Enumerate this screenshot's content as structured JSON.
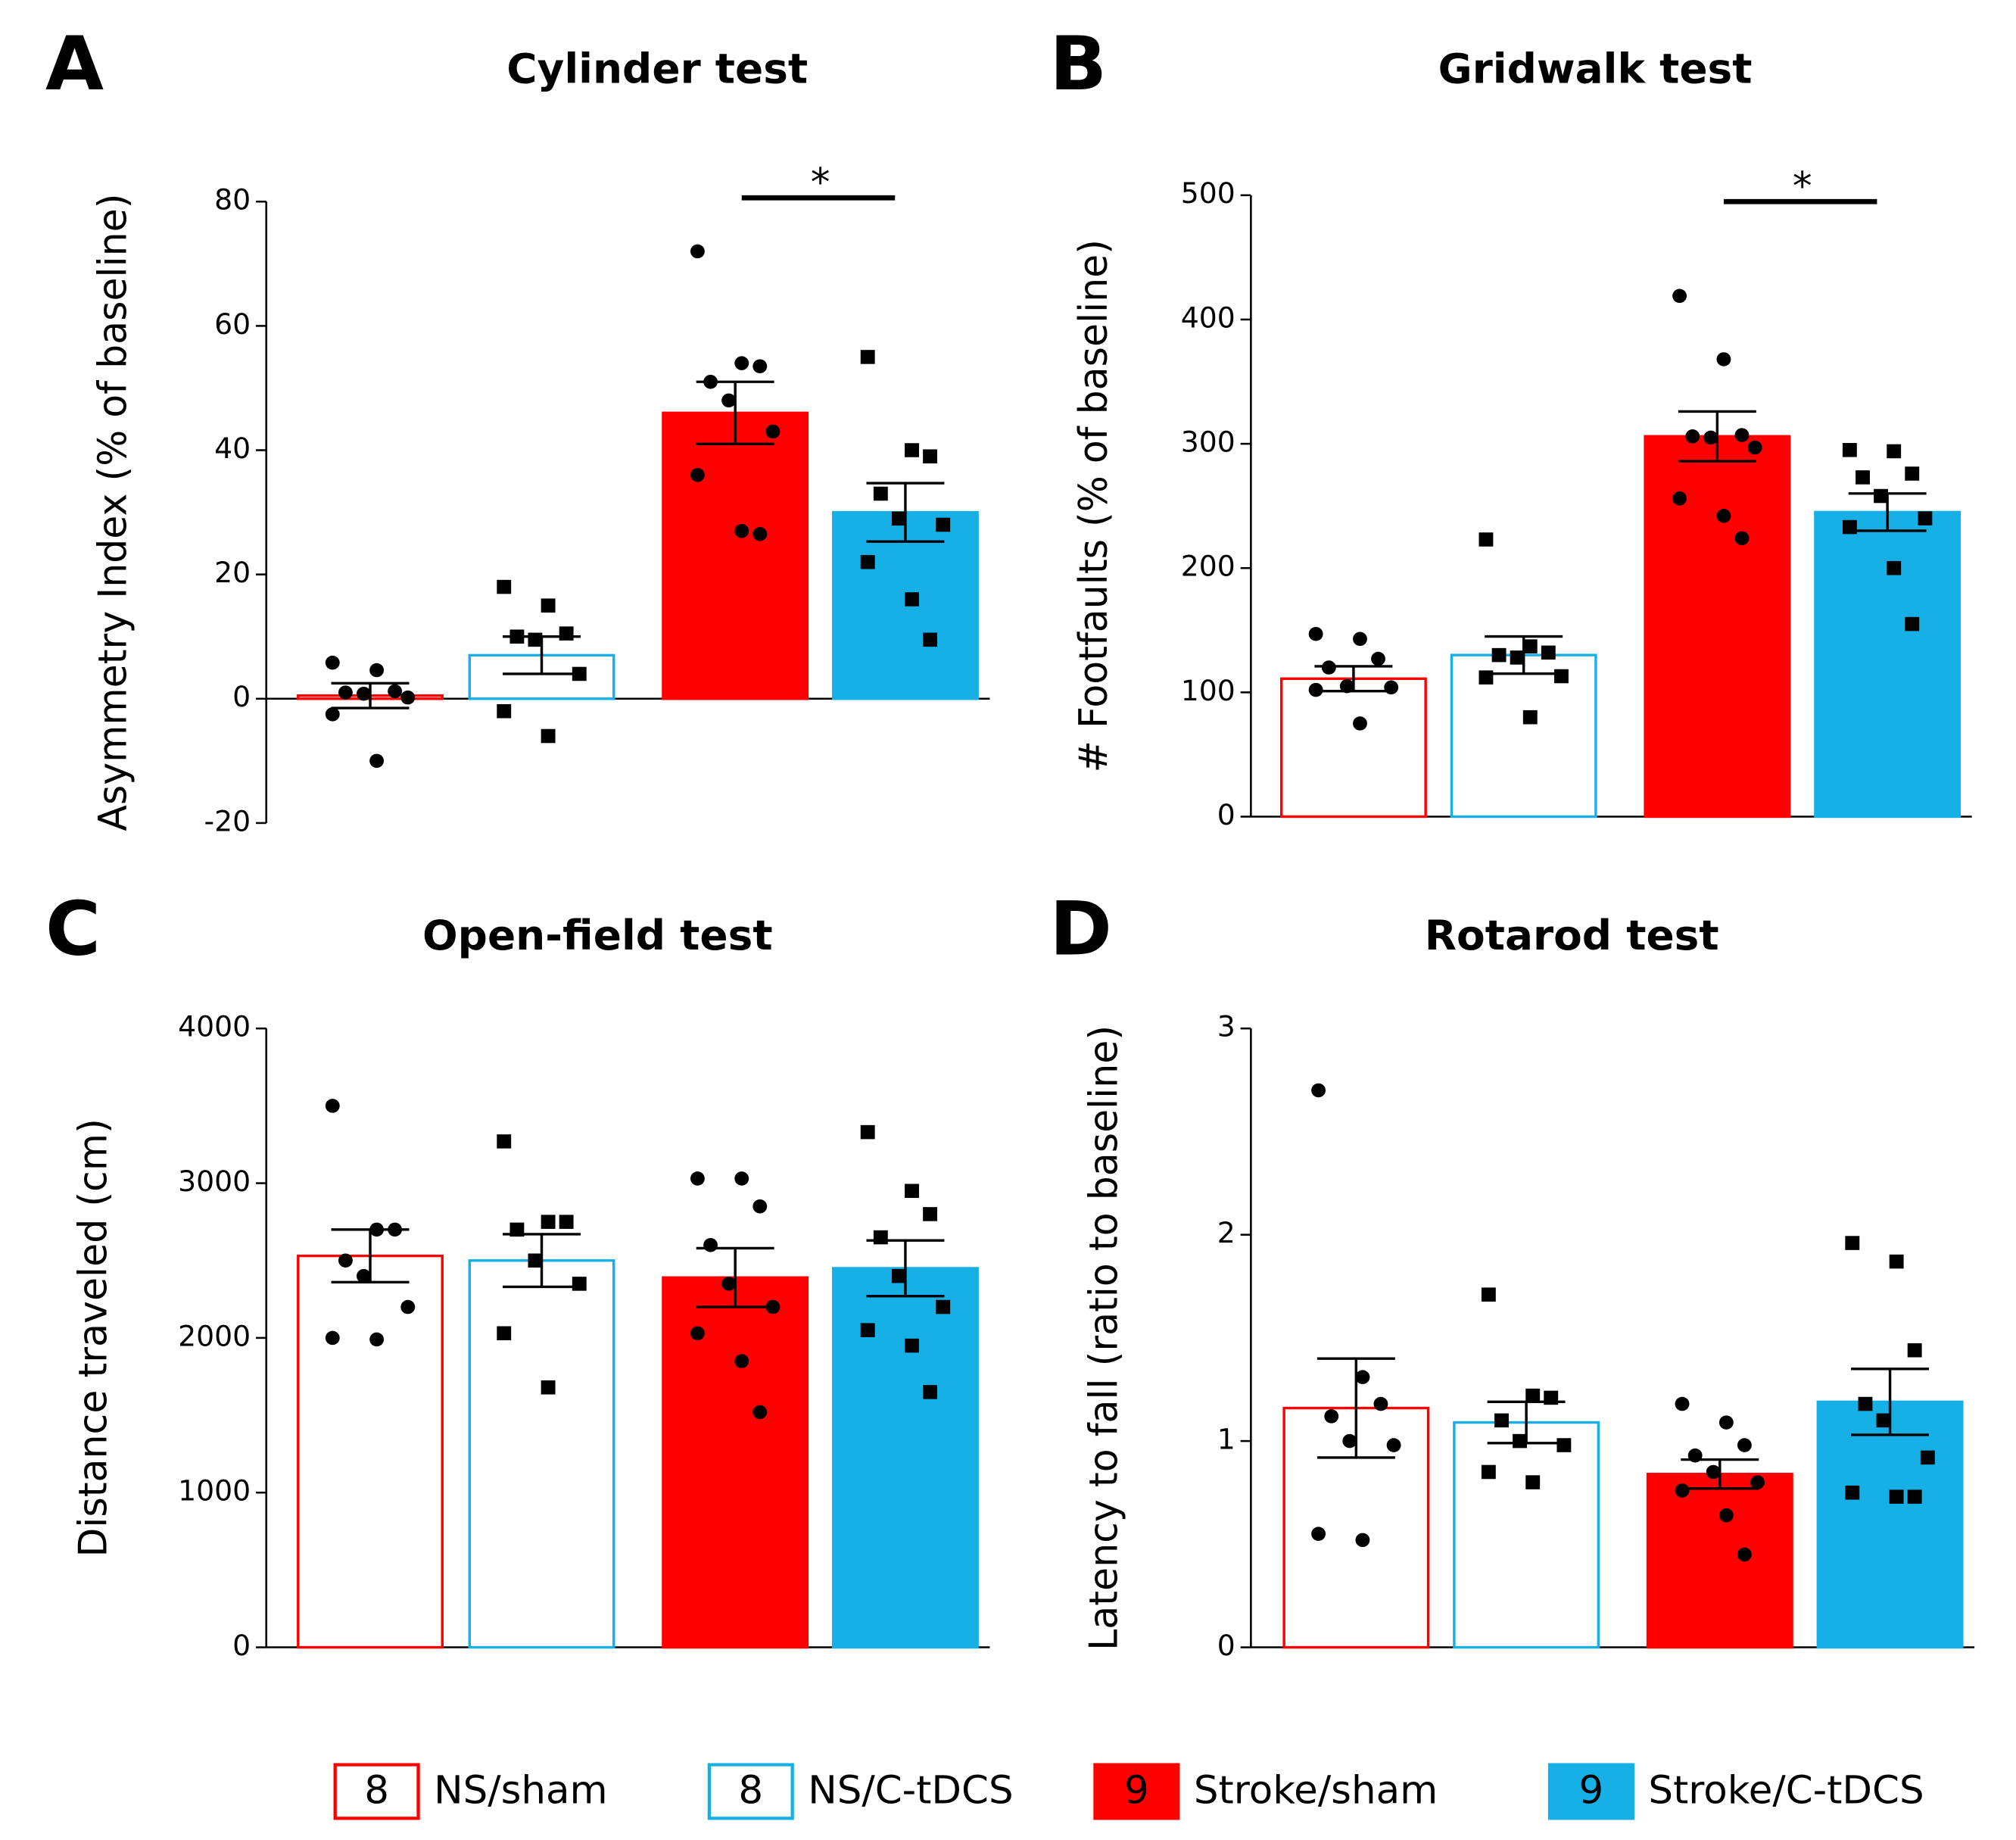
{
  "chart_data": [
    {
      "type": "bar",
      "panel": "A",
      "title": "Cylinder test",
      "y_label": "Asymmetry Index (% of baseline)",
      "ylim": [
        -20,
        80
      ],
      "yticks": [
        -20,
        0,
        20,
        40,
        60,
        80
      ],
      "values": [
        0.5,
        7,
        46,
        30
      ],
      "errors": [
        2,
        3,
        5,
        4.7
      ],
      "points": [
        [
          5.8,
          4.6,
          1.2,
          1.0,
          0.8,
          0.2,
          -2.5,
          -10
        ],
        [
          18,
          15,
          10.5,
          10,
          9.5,
          4,
          -2,
          -6
        ],
        [
          72,
          54,
          53.5,
          51,
          48,
          43,
          36,
          27,
          26.5
        ],
        [
          55,
          40,
          39,
          33,
          29,
          28,
          22,
          16,
          9.5
        ]
      ],
      "significance": {
        "label": "*",
        "between": [
          2,
          3
        ]
      }
    },
    {
      "type": "bar",
      "panel": "B",
      "title": "Gridwalk test",
      "y_label": "# Footfaults (% of baseline)",
      "ylim": [
        0,
        500
      ],
      "yticks": [
        0,
        100,
        200,
        300,
        400,
        500
      ],
      "values": [
        111,
        130,
        306,
        245
      ],
      "errors": [
        10,
        15,
        20,
        15
      ],
      "points": [
        [
          147,
          143,
          127,
          120,
          105,
          104,
          102,
          75
        ],
        [
          223,
          137,
          132,
          130,
          128,
          113,
          112,
          80
        ],
        [
          419,
          368,
          307,
          306,
          305,
          297,
          256,
          242,
          224
        ],
        [
          295,
          294,
          276,
          273,
          258,
          240,
          233,
          200,
          155
        ]
      ],
      "significance": {
        "label": "*",
        "between": [
          2,
          3
        ]
      }
    },
    {
      "type": "bar",
      "panel": "C",
      "title": "Open-field test",
      "y_label": "Distance traveled (cm)",
      "ylim": [
        0,
        4000
      ],
      "yticks": [
        0,
        1000,
        2000,
        3000,
        4000
      ],
      "values": [
        2530,
        2500,
        2390,
        2450
      ],
      "errors": [
        170,
        170,
        190,
        180
      ],
      "points": [
        [
          3500,
          2700,
          2700,
          2500,
          2400,
          2200,
          2000,
          1990
        ],
        [
          3270,
          2750,
          2750,
          2700,
          2500,
          2350,
          2030,
          1680
        ],
        [
          3030,
          3030,
          2850,
          2600,
          2350,
          2200,
          2030,
          1850,
          1520
        ],
        [
          3330,
          2950,
          2800,
          2650,
          2400,
          2200,
          2050,
          1950,
          1650
        ]
      ]
    },
    {
      "type": "bar",
      "panel": "D",
      "title": "Rotarod test",
      "y_label": "Latency to fall (ratio to baseline)",
      "ylim": [
        0,
        3
      ],
      "yticks": [
        0,
        1,
        2,
        3
      ],
      "values": [
        1.16,
        1.09,
        0.84,
        1.19
      ],
      "errors": [
        0.24,
        0.1,
        0.07,
        0.16
      ],
      "points": [
        [
          2.7,
          1.31,
          1.18,
          1.12,
          1.0,
          0.98,
          0.55,
          0.52
        ],
        [
          1.71,
          1.22,
          1.21,
          1.1,
          1.0,
          0.98,
          0.85,
          0.8
        ],
        [
          1.18,
          1.09,
          0.98,
          0.93,
          0.85,
          0.8,
          0.76,
          0.64,
          0.45
        ],
        [
          1.96,
          1.87,
          1.44,
          1.18,
          1.1,
          0.92,
          0.75,
          0.73,
          0.73
        ]
      ]
    }
  ],
  "groups": [
    {
      "n": 8,
      "name": "NS/sham",
      "color": "#ff0000",
      "filled": false,
      "marker": "circle"
    },
    {
      "n": 8,
      "name": "NS/C-tDCS",
      "color": "#16b0e6",
      "filled": false,
      "marker": "square"
    },
    {
      "n": 9,
      "name": "Stroke/sham",
      "color": "#ff0000",
      "filled": true,
      "marker": "circle"
    },
    {
      "n": 9,
      "name": "Stroke/C-tDCS",
      "color": "#16b0e6",
      "filled": true,
      "marker": "square"
    }
  ]
}
